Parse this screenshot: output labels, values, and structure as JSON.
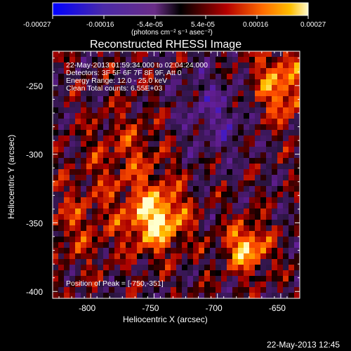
{
  "chart_data": {
    "type": "heatmap",
    "title": "Reconstructed RHESSI Image",
    "xlabel": "Heliocentric X (arcsec)",
    "ylabel": "Heliocentric Y (arcsec)",
    "xlim": [
      -830,
      -635
    ],
    "ylim": [
      -405,
      -225
    ],
    "x_ticks": [
      -800,
      -750,
      -700,
      -650
    ],
    "y_ticks": [
      -250,
      -300,
      -350,
      -400
    ],
    "x_tick_labels": [
      "-800",
      "-750",
      "-700",
      "-650"
    ],
    "y_tick_labels": [
      "-250",
      "-300",
      "-350",
      "-400"
    ],
    "colorbar": {
      "tick_labels": [
        "-0.00027",
        "-0.00016",
        "-5.4e-05",
        "5.4e-05",
        "0.00016",
        "0.00027"
      ],
      "units_label": "(photons cm⁻² s⁻¹ asec⁻²)"
    },
    "annotations": [
      "22-May-2013 01:59:34.000 to 02:04:24.000",
      "Detectors: 3F 5F 6F 7F 8F 9F, Att 0",
      "Energy Range: 12.0 - 25.0 keV",
      "Clean    Total counts: 6.55E+03"
    ],
    "peak_text": "Position of Peak = [-750,-351]",
    "timestamp": "22-May-2013 12:45",
    "hotspots": [
      {
        "x": -748,
        "y": -347,
        "value": 0.00026
      },
      {
        "x": -677,
        "y": -368,
        "value": 0.00022
      },
      {
        "x": -650,
        "y": -250,
        "value": 0.00018
      },
      {
        "x": -770,
        "y": -300,
        "value": 9e-05
      },
      {
        "x": -810,
        "y": -350,
        "value": 8e-05
      },
      {
        "x": -700,
        "y": -270,
        "value": -0.0001
      }
    ]
  }
}
